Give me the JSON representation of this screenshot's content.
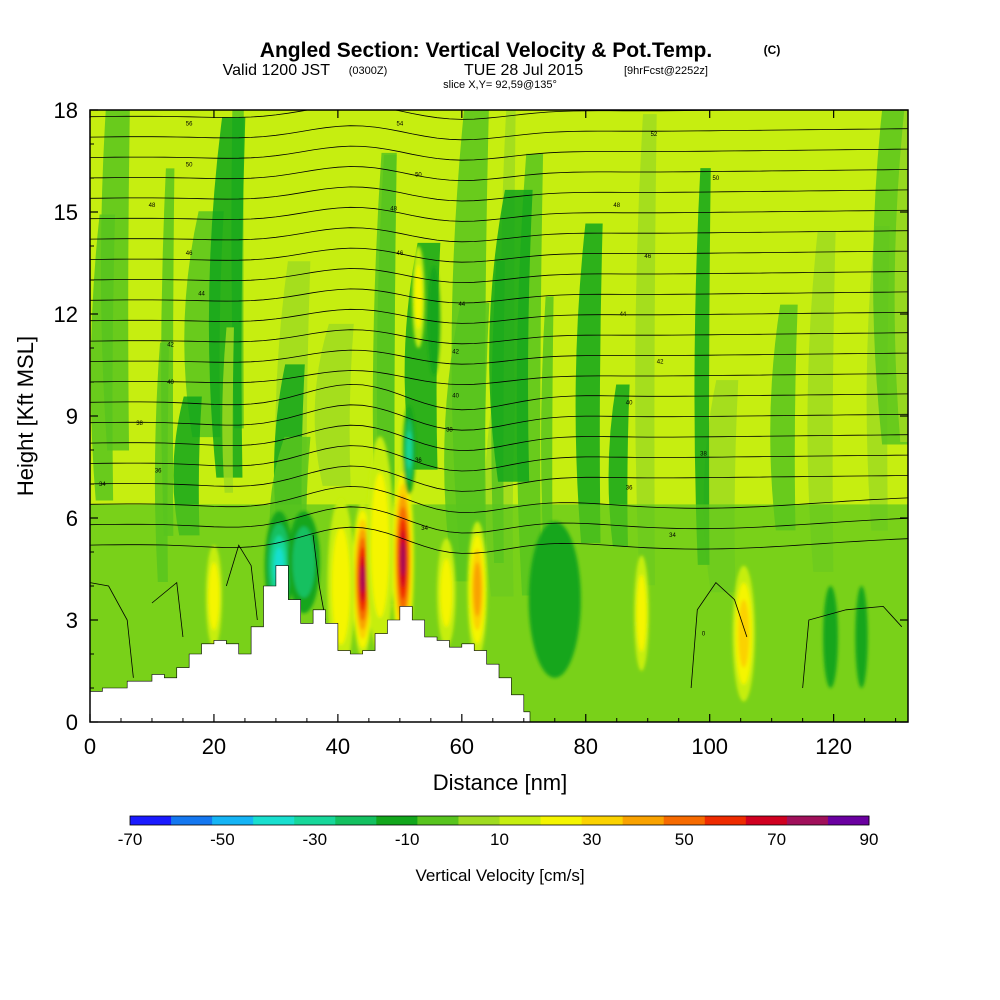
{
  "header": {
    "title": "Angled Section: Vertical Velocity & Pot.Temp.",
    "title_mark": "(C)",
    "valid_prefix": "Valid 1200 JST",
    "valid_zulu": "(0300Z)",
    "valid_date": "TUE 28 Jul 2015",
    "valid_fcst": "[9hrFcst@2252z]",
    "slice": "slice X,Y= 92,59@135°"
  },
  "chart_data": {
    "type": "heatmap",
    "xlabel": "Distance [nm]",
    "ylabel": "Height [Kft MSL]",
    "xlim": [
      0,
      132
    ],
    "ylim": [
      0,
      18
    ],
    "x_ticks": [
      0,
      20,
      40,
      60,
      80,
      100,
      120
    ],
    "y_ticks": [
      0,
      3,
      6,
      9,
      12,
      15,
      18
    ],
    "grid": false,
    "colorbar": {
      "label": "Vertical Velocity [cm/s]",
      "tick_labels": [
        "-70",
        "-50",
        "-30",
        "-10",
        "10",
        "30",
        "50",
        "70",
        "90"
      ],
      "levels": [
        -70,
        -60,
        -50,
        -40,
        -30,
        -20,
        -10,
        0,
        10,
        20,
        30,
        40,
        50,
        60,
        70,
        80,
        90
      ],
      "colors": [
        "#1a1aff",
        "#1477f0",
        "#15b4f5",
        "#19dfcf",
        "#17d79a",
        "#13c060",
        "#12a61c",
        "#58c41e",
        "#9fdb20",
        "#c6ee10",
        "#f5f500",
        "#fbd200",
        "#f9a200",
        "#f66a00",
        "#ee2b00",
        "#d00020",
        "#a0105a",
        "#6a00a0"
      ],
      "placement": "bottom"
    },
    "terrain": [
      [
        0,
        0.9
      ],
      [
        2,
        1.0
      ],
      [
        6,
        1.2
      ],
      [
        10,
        1.4
      ],
      [
        12,
        1.3
      ],
      [
        14,
        1.6
      ],
      [
        16,
        2.0
      ],
      [
        18,
        2.3
      ],
      [
        20,
        2.4
      ],
      [
        22,
        2.3
      ],
      [
        24,
        2.0
      ],
      [
        26,
        2.8
      ],
      [
        28,
        4.0
      ],
      [
        30,
        4.6
      ],
      [
        32,
        3.6
      ],
      [
        34,
        2.9
      ],
      [
        36,
        3.3
      ],
      [
        38,
        2.9
      ],
      [
        40,
        2.1
      ],
      [
        42,
        2.0
      ],
      [
        44,
        2.1
      ],
      [
        46,
        2.6
      ],
      [
        48,
        3.0
      ],
      [
        50,
        3.4
      ],
      [
        52,
        3.0
      ],
      [
        54,
        2.5
      ],
      [
        56,
        2.4
      ],
      [
        58,
        2.2
      ],
      [
        60,
        2.3
      ],
      [
        62,
        2.1
      ],
      [
        64,
        1.7
      ],
      [
        66,
        1.3
      ],
      [
        68,
        0.8
      ],
      [
        70,
        0.3
      ],
      [
        71,
        0
      ]
    ],
    "w_cells": [
      {
        "x": 44,
        "y": 4.2,
        "w": 80,
        "rx": 1.7,
        "ry": 2.3
      },
      {
        "x": 50.5,
        "y": 4.8,
        "w": 80,
        "rx": 1.8,
        "ry": 2.9
      },
      {
        "x": 46.8,
        "y": 5.2,
        "w": 25,
        "rx": 2.2,
        "ry": 3.2
      },
      {
        "x": 40.5,
        "y": 4.0,
        "w": 25,
        "rx": 2.2,
        "ry": 2.6
      },
      {
        "x": 62.5,
        "y": 3.9,
        "w": 45,
        "rx": 1.6,
        "ry": 2.0
      },
      {
        "x": 57.5,
        "y": 3.8,
        "w": 22,
        "rx": 1.5,
        "ry": 1.6
      },
      {
        "x": 20,
        "y": 3.7,
        "w": 25,
        "rx": 1.3,
        "ry": 1.5
      },
      {
        "x": 105.5,
        "y": 2.6,
        "w": 35,
        "rx": 1.8,
        "ry": 2.0
      },
      {
        "x": 30.5,
        "y": 4.6,
        "w": -40,
        "rx": 2.3,
        "ry": 1.6
      },
      {
        "x": 34.5,
        "y": 4.7,
        "w": -28,
        "rx": 2.6,
        "ry": 1.5
      },
      {
        "x": 51.5,
        "y": 8.0,
        "w": -30,
        "rx": 1.0,
        "ry": 1.3
      },
      {
        "x": 55.5,
        "y": 11.8,
        "w": -15,
        "rx": 1.0,
        "ry": 1.6
      },
      {
        "x": 75,
        "y": 3.6,
        "w": -18,
        "rx": 4.2,
        "ry": 2.3
      },
      {
        "x": 119.5,
        "y": 2.5,
        "w": -12,
        "rx": 1.2,
        "ry": 1.5
      },
      {
        "x": 124.5,
        "y": 2.5,
        "w": -10,
        "rx": 1.0,
        "ry": 1.5
      },
      {
        "x": 53,
        "y": 12.5,
        "w": 22,
        "rx": 1.0,
        "ry": 1.5
      },
      {
        "x": 89,
        "y": 3.2,
        "w": 25,
        "rx": 1.2,
        "ry": 1.7
      }
    ],
    "theta_labels": [
      {
        "x": 16,
        "y": 17.6,
        "t": "56"
      },
      {
        "x": 50,
        "y": 17.6,
        "t": "54"
      },
      {
        "x": 91,
        "y": 17.3,
        "t": "52"
      },
      {
        "x": 16,
        "y": 16.4,
        "t": "50"
      },
      {
        "x": 53,
        "y": 16.1,
        "t": "50"
      },
      {
        "x": 101,
        "y": 16.0,
        "t": "50"
      },
      {
        "x": 10,
        "y": 15.2,
        "t": "48"
      },
      {
        "x": 49,
        "y": 15.1,
        "t": "48"
      },
      {
        "x": 85,
        "y": 15.2,
        "t": "48"
      },
      {
        "x": 16,
        "y": 13.8,
        "t": "46"
      },
      {
        "x": 50,
        "y": 13.8,
        "t": "46"
      },
      {
        "x": 90,
        "y": 13.7,
        "t": "46"
      },
      {
        "x": 18,
        "y": 12.6,
        "t": "44"
      },
      {
        "x": 60,
        "y": 12.3,
        "t": "44"
      },
      {
        "x": 86,
        "y": 12.0,
        "t": "44"
      },
      {
        "x": 13,
        "y": 11.1,
        "t": "42"
      },
      {
        "x": 59,
        "y": 10.9,
        "t": "42"
      },
      {
        "x": 92,
        "y": 10.6,
        "t": "42"
      },
      {
        "x": 13,
        "y": 10.0,
        "t": "40"
      },
      {
        "x": 59,
        "y": 9.6,
        "t": "40"
      },
      {
        "x": 87,
        "y": 9.4,
        "t": "40"
      },
      {
        "x": 8,
        "y": 8.8,
        "t": "38"
      },
      {
        "x": 58,
        "y": 8.6,
        "t": "38"
      },
      {
        "x": 99,
        "y": 7.9,
        "t": "38"
      },
      {
        "x": 11,
        "y": 7.4,
        "t": "36"
      },
      {
        "x": 53,
        "y": 7.7,
        "t": "36"
      },
      {
        "x": 87,
        "y": 6.9,
        "t": "36"
      },
      {
        "x": 2,
        "y": 7.0,
        "t": "34"
      },
      {
        "x": 54,
        "y": 5.7,
        "t": "34"
      },
      {
        "x": 94,
        "y": 5.5,
        "t": "34"
      }
    ],
    "zero_label": {
      "x": 99,
      "y": 2.6,
      "t": "0"
    }
  }
}
